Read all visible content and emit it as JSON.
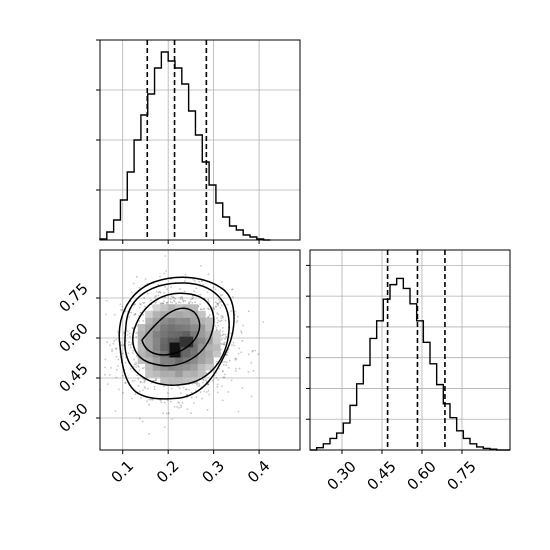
{
  "chart_data": [
    {
      "type": "histogram",
      "panel": "top-left",
      "parameter": "x",
      "xlim": [
        0.05,
        0.49
      ],
      "grid": true,
      "bin_edges": [
        0.05,
        0.065,
        0.08,
        0.095,
        0.11,
        0.125,
        0.14,
        0.155,
        0.17,
        0.185,
        0.2,
        0.215,
        0.23,
        0.245,
        0.26,
        0.275,
        0.29,
        0.305,
        0.32,
        0.335,
        0.35,
        0.365,
        0.38,
        0.395,
        0.41,
        0.425
      ],
      "counts": [
        1,
        8,
        20,
        40,
        68,
        100,
        125,
        146,
        172,
        188,
        179,
        172,
        156,
        129,
        105,
        78,
        55,
        37,
        23,
        14,
        10,
        5,
        3,
        1,
        0
      ],
      "ylim": [
        0,
        200
      ],
      "quantiles": [
        0.154,
        0.214,
        0.284
      ]
    },
    {
      "type": "heatmap",
      "panel": "bottom-left",
      "x_parameter": "x",
      "y_parameter": "y",
      "xlim": [
        0.05,
        0.49
      ],
      "ylim": [
        0.18,
        0.93
      ],
      "x_ticks": [
        "0.1",
        "0.2",
        "0.3",
        "0.4"
      ],
      "y_ticks": [
        "0.30",
        "0.45",
        "0.60",
        "0.75"
      ],
      "grid": true,
      "density_center": [
        0.22,
        0.58
      ],
      "density_sd": [
        0.06,
        0.1
      ],
      "contour_levels": 4,
      "peak": [
        0.215,
        0.555
      ]
    },
    {
      "type": "histogram",
      "panel": "bottom-right",
      "parameter": "y",
      "xlim": [
        0.18,
        0.93
      ],
      "x_ticks": [
        "0.30",
        "0.45",
        "0.60",
        "0.75"
      ],
      "grid": true,
      "bin_edges": [
        0.18,
        0.205,
        0.23,
        0.255,
        0.28,
        0.305,
        0.33,
        0.355,
        0.38,
        0.405,
        0.43,
        0.455,
        0.48,
        0.505,
        0.53,
        0.555,
        0.58,
        0.605,
        0.63,
        0.655,
        0.68,
        0.705,
        0.73,
        0.755,
        0.78,
        0.805,
        0.83,
        0.855,
        0.88,
        0.905,
        0.93
      ],
      "counts": [
        0,
        3,
        8,
        15,
        22,
        35,
        58,
        86,
        110,
        145,
        168,
        196,
        215,
        223,
        210,
        190,
        168,
        140,
        112,
        85,
        60,
        42,
        25,
        15,
        8,
        4,
        2,
        1,
        0,
        0
      ],
      "ylim": [
        0,
        260
      ],
      "quantiles": [
        0.471,
        0.583,
        0.686
      ]
    }
  ],
  "axes": {
    "x_ticks": [
      "0.1",
      "0.2",
      "0.3",
      "0.4"
    ],
    "y_ticks": [
      "0.30",
      "0.45",
      "0.60",
      "0.75"
    ],
    "y_ticks_right": [
      "0.30",
      "0.45",
      "0.60",
      "0.75"
    ]
  },
  "colors": {
    "line": "#000000",
    "grid": "#b0b0b0",
    "density": "#000000",
    "background": "#ffffff"
  }
}
